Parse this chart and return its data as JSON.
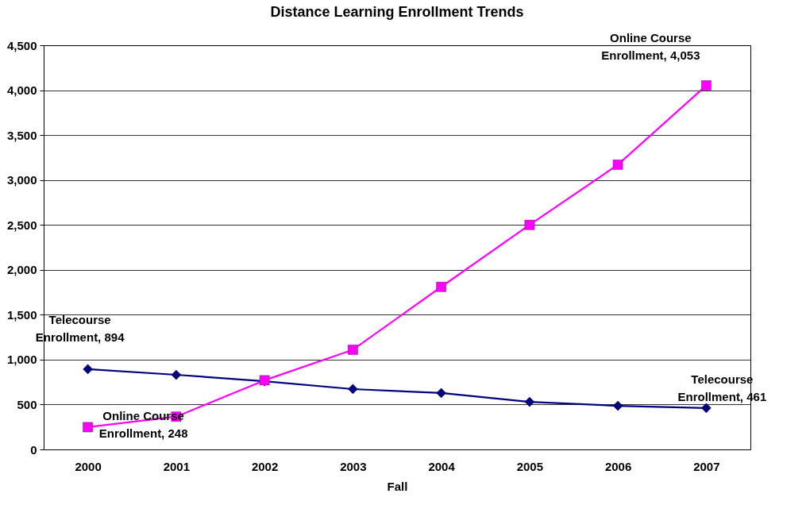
{
  "chart_data": {
    "type": "line",
    "title": "Distance Learning Enrollment Trends",
    "xlabel": "Fall",
    "categories": [
      "2000",
      "2001",
      "2002",
      "2003",
      "2004",
      "2005",
      "2006",
      "2007"
    ],
    "series": [
      {
        "color": "#000080",
        "marker": "diamond",
        "values": [
          894,
          831,
          760,
          672,
          628,
          530,
          486,
          461
        ]
      },
      {
        "color": "#ff00ff",
        "marker": "square",
        "values": [
          248,
          365,
          770,
          1110,
          1810,
          2500,
          3170,
          4053
        ]
      }
    ],
    "ylim": [
      0,
      4500
    ],
    "yticks": [
      {
        "value": 0,
        "label": "0"
      },
      {
        "value": 500,
        "label": "500"
      },
      {
        "value": 1000,
        "label": "1,000"
      },
      {
        "value": 1500,
        "label": "1,500"
      },
      {
        "value": 2000,
        "label": "2,000"
      },
      {
        "value": 2500,
        "label": "2,500"
      },
      {
        "value": 3000,
        "label": "3,000"
      },
      {
        "value": 3500,
        "label": "3,500"
      },
      {
        "value": 4000,
        "label": "4,000"
      },
      {
        "value": 4500,
        "label": "4,500"
      }
    ],
    "grid": "y",
    "legend": false,
    "line_style": "solid",
    "annotations": [
      {
        "text": "Telecourse Enrollment, 894",
        "x": "2000",
        "y": 894
      },
      {
        "text": "Telecourse Enrollment, 461",
        "x": "2007",
        "y": 461
      },
      {
        "text": "Online Course Enrollment, 248",
        "x": "2000",
        "y": 248
      },
      {
        "text": "Online Course Enrollment, 4,053",
        "x": "2007",
        "y": 4053
      }
    ]
  }
}
